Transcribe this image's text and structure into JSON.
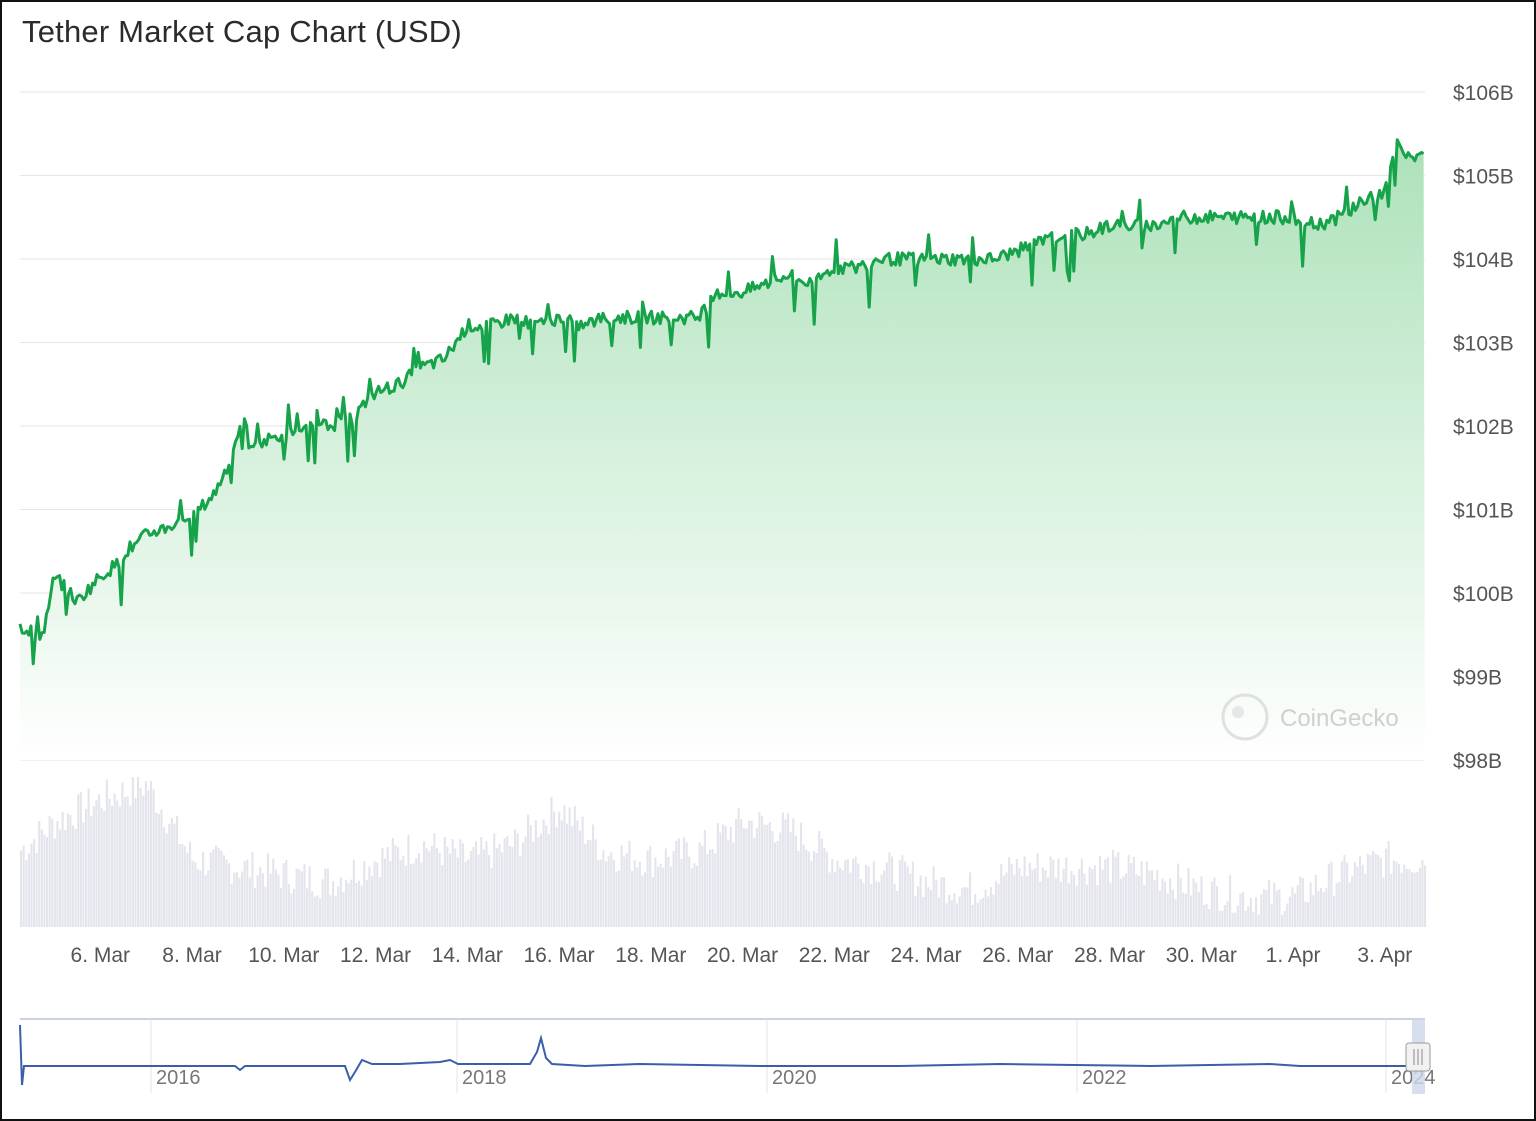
{
  "title": "Tether Market Cap Chart (USD)",
  "watermark": "CoinGecko",
  "colors": {
    "line": "#16a34a",
    "fill_top": "#b9e8c4",
    "volume": "#e3e4ec",
    "navigator_line": "#3a5ea8",
    "grid": "#e6e6e6"
  },
  "chart_data": {
    "type": "area",
    "title": "Tether Market Cap Chart (USD)",
    "xlabel": "",
    "ylabel": "",
    "y_unit": "USD",
    "ylim": [
      98,
      106
    ],
    "y_ticks": [
      {
        "value": 106,
        "label": "$106B"
      },
      {
        "value": 105,
        "label": "$105B"
      },
      {
        "value": 104,
        "label": "$104B"
      },
      {
        "value": 103,
        "label": "$103B"
      },
      {
        "value": 102,
        "label": "$102B"
      },
      {
        "value": 101,
        "label": "$101B"
      },
      {
        "value": 100,
        "label": "$100B"
      },
      {
        "value": 99,
        "label": "$99B"
      },
      {
        "value": 98,
        "label": "$98B"
      }
    ],
    "xlim": [
      "2024-03-04T06:00",
      "2024-04-03T21:00"
    ],
    "x_ticks": [
      {
        "date": "2024-03-06",
        "label": "6. Mar"
      },
      {
        "date": "2024-03-08",
        "label": "8. Mar"
      },
      {
        "date": "2024-03-10",
        "label": "10. Mar"
      },
      {
        "date": "2024-03-12",
        "label": "12. Mar"
      },
      {
        "date": "2024-03-14",
        "label": "14. Mar"
      },
      {
        "date": "2024-03-16",
        "label": "16. Mar"
      },
      {
        "date": "2024-03-18",
        "label": "18. Mar"
      },
      {
        "date": "2024-03-20",
        "label": "20. Mar"
      },
      {
        "date": "2024-03-22",
        "label": "22. Mar"
      },
      {
        "date": "2024-03-24",
        "label": "24. Mar"
      },
      {
        "date": "2024-03-26",
        "label": "26. Mar"
      },
      {
        "date": "2024-03-28",
        "label": "28. Mar"
      },
      {
        "date": "2024-03-30",
        "label": "30. Mar"
      },
      {
        "date": "2024-04-01",
        "label": "1. Apr"
      },
      {
        "date": "2024-04-03",
        "label": "3. Apr"
      }
    ],
    "grid": true,
    "legend": "none",
    "series": [
      {
        "values_usd_billions": [
          [
            "2024-03-04T06:00",
            99.6
          ],
          [
            "2024-03-04T18:00",
            99.5
          ],
          [
            "2024-03-05T00:00",
            100.2
          ],
          [
            "2024-03-05T12:00",
            99.9
          ],
          [
            "2024-03-06T00:00",
            100.2
          ],
          [
            "2024-03-06T12:00",
            100.4
          ],
          [
            "2024-03-07T00:00",
            100.7
          ],
          [
            "2024-03-07T12:00",
            100.8
          ],
          [
            "2024-03-08T00:00",
            100.9
          ],
          [
            "2024-03-08T12:00",
            101.2
          ],
          [
            "2024-03-09T00:00",
            101.8
          ],
          [
            "2024-03-09T12:00",
            101.8
          ],
          [
            "2024-03-10T00:00",
            101.9
          ],
          [
            "2024-03-10T12:00",
            102.0
          ],
          [
            "2024-03-11T00:00",
            102.0
          ],
          [
            "2024-03-11T12:00",
            102.1
          ],
          [
            "2024-03-12T00:00",
            102.4
          ],
          [
            "2024-03-12T12:00",
            102.5
          ],
          [
            "2024-03-13T00:00",
            102.7
          ],
          [
            "2024-03-13T12:00",
            102.8
          ],
          [
            "2024-03-14T00:00",
            103.2
          ],
          [
            "2024-03-14T12:00",
            103.2
          ],
          [
            "2024-03-15T00:00",
            103.3
          ],
          [
            "2024-03-15T12:00",
            103.2
          ],
          [
            "2024-03-16T00:00",
            103.3
          ],
          [
            "2024-03-16T12:00",
            103.2
          ],
          [
            "2024-03-17T00:00",
            103.3
          ],
          [
            "2024-03-17T12:00",
            103.3
          ],
          [
            "2024-03-18T00:00",
            103.3
          ],
          [
            "2024-03-18T12:00",
            103.3
          ],
          [
            "2024-03-19T00:00",
            103.3
          ],
          [
            "2024-03-19T12:00",
            103.6
          ],
          [
            "2024-03-20T00:00",
            103.6
          ],
          [
            "2024-03-20T12:00",
            103.7
          ],
          [
            "2024-03-21T00:00",
            103.8
          ],
          [
            "2024-03-21T12:00",
            103.7
          ],
          [
            "2024-03-22T00:00",
            103.9
          ],
          [
            "2024-03-22T12:00",
            103.9
          ],
          [
            "2024-03-23T00:00",
            104.0
          ],
          [
            "2024-03-23T12:00",
            104.0
          ],
          [
            "2024-03-24T00:00",
            104.0
          ],
          [
            "2024-03-24T12:00",
            104.0
          ],
          [
            "2024-03-25T00:00",
            104.0
          ],
          [
            "2024-03-25T12:00",
            104.0
          ],
          [
            "2024-03-26T00:00",
            104.1
          ],
          [
            "2024-03-26T12:00",
            104.2
          ],
          [
            "2024-03-27T00:00",
            104.3
          ],
          [
            "2024-03-27T12:00",
            104.3
          ],
          [
            "2024-03-28T00:00",
            104.4
          ],
          [
            "2024-03-28T12:00",
            104.4
          ],
          [
            "2024-03-29T00:00",
            104.4
          ],
          [
            "2024-03-29T12:00",
            104.5
          ],
          [
            "2024-03-30T00:00",
            104.5
          ],
          [
            "2024-03-30T12:00",
            104.5
          ],
          [
            "2024-03-31T00:00",
            104.5
          ],
          [
            "2024-03-31T12:00",
            104.5
          ],
          [
            "2024-04-01T00:00",
            104.5
          ],
          [
            "2024-04-01T12:00",
            104.4
          ],
          [
            "2024-04-02T00:00",
            104.5
          ],
          [
            "2024-04-02T12:00",
            104.7
          ],
          [
            "2024-04-03T00:00",
            104.8
          ],
          [
            "2024-04-03T06:00",
            105.4
          ],
          [
            "2024-04-03T12:00",
            105.2
          ],
          [
            "2024-04-03T21:00",
            105.3
          ]
        ]
      }
    ],
    "volume": {
      "relative_levels": [
        [
          "2024-03-04",
          0.45
        ],
        [
          "2024-03-05",
          0.7
        ],
        [
          "2024-03-06",
          0.85
        ],
        [
          "2024-03-07",
          0.95
        ],
        [
          "2024-03-08",
          0.45
        ],
        [
          "2024-03-09",
          0.4
        ],
        [
          "2024-03-10",
          0.35
        ],
        [
          "2024-03-11",
          0.3
        ],
        [
          "2024-03-12",
          0.45
        ],
        [
          "2024-03-13",
          0.55
        ],
        [
          "2024-03-14",
          0.45
        ],
        [
          "2024-03-15",
          0.55
        ],
        [
          "2024-03-16",
          0.8
        ],
        [
          "2024-03-17",
          0.5
        ],
        [
          "2024-03-18",
          0.45
        ],
        [
          "2024-03-19",
          0.5
        ],
        [
          "2024-03-20",
          0.7
        ],
        [
          "2024-03-21",
          0.65
        ],
        [
          "2024-03-22",
          0.45
        ],
        [
          "2024-03-23",
          0.4
        ],
        [
          "2024-03-24",
          0.3
        ],
        [
          "2024-03-25",
          0.25
        ],
        [
          "2024-03-26",
          0.4
        ],
        [
          "2024-03-27",
          0.4
        ],
        [
          "2024-03-28",
          0.4
        ],
        [
          "2024-03-29",
          0.35
        ],
        [
          "2024-03-30",
          0.25
        ],
        [
          "2024-03-31",
          0.2
        ],
        [
          "2024-04-01",
          0.2
        ],
        [
          "2024-04-02",
          0.35
        ],
        [
          "2024-04-03",
          0.45
        ]
      ]
    },
    "navigator": {
      "x_ticks": [
        "2016",
        "2018",
        "2020",
        "2022",
        "2024"
      ],
      "selected_range": "2024-03-04 to 2024-04-03"
    }
  }
}
